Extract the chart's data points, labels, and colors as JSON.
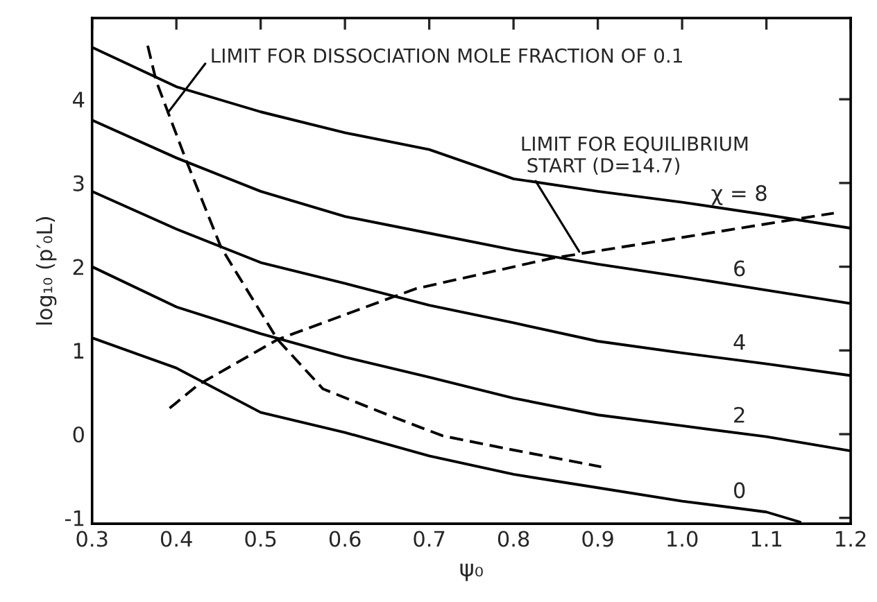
{
  "chart_data": {
    "type": "line",
    "xlabel": "ψ₀",
    "ylabel": "log₁₀ (p′₀L)",
    "xlim": [
      0.3,
      1.2
    ],
    "ylim": [
      -1.07,
      4.97
    ],
    "xticks": [
      {
        "value": 0.3,
        "label": "0.3"
      },
      {
        "value": 0.4,
        "label": "0.4"
      },
      {
        "value": 0.5,
        "label": "0.5"
      },
      {
        "value": 0.6,
        "label": "0.6"
      },
      {
        "value": 0.7,
        "label": "0.7"
      },
      {
        "value": 0.8,
        "label": "0.8"
      },
      {
        "value": 0.9,
        "label": "0.9"
      },
      {
        "value": 1.0,
        "label": "1.0"
      },
      {
        "value": 1.1,
        "label": "1.1"
      },
      {
        "value": 1.2,
        "label": "1.2"
      }
    ],
    "yticks": [
      -1,
      0,
      1,
      2,
      3,
      4
    ],
    "grid": false,
    "legend": false,
    "marker": "none",
    "series": [
      {
        "name": "0",
        "color": "#000000",
        "line_style": "solid",
        "x": [
          0.3,
          0.4,
          0.5,
          0.6,
          0.7,
          0.8,
          0.9,
          1.0,
          1.1,
          1.14
        ],
        "values": [
          1.15,
          0.79,
          0.26,
          0.02,
          -0.26,
          -0.48,
          -0.64,
          -0.8,
          -0.93,
          -1.05
        ]
      },
      {
        "color": "#000000",
        "line_style": "solid",
        "x": [
          0.3,
          0.4,
          0.5,
          0.6,
          0.7,
          0.8,
          0.9,
          1.0,
          1.1,
          1.2
        ],
        "name": "2",
        "values": [
          2.0,
          1.52,
          1.2,
          0.92,
          0.68,
          0.43,
          0.23,
          0.1,
          -0.03,
          -0.2
        ]
      },
      {
        "color": "#000000",
        "line_style": "solid",
        "x": [
          0.3,
          0.4,
          0.5,
          0.6,
          0.7,
          0.8,
          0.9,
          1.0,
          1.1,
          1.2
        ],
        "name": "4",
        "values": [
          2.9,
          2.45,
          2.05,
          1.8,
          1.54,
          1.33,
          1.11,
          0.97,
          0.84,
          0.7
        ]
      },
      {
        "color": "#000000",
        "line_style": "solid",
        "x": [
          0.3,
          0.4,
          0.5,
          0.6,
          0.7,
          0.8,
          0.9,
          1.0,
          1.1,
          1.2
        ],
        "name": "6",
        "values": [
          3.75,
          3.3,
          2.9,
          2.6,
          2.4,
          2.2,
          2.03,
          1.88,
          1.72,
          1.56
        ]
      },
      {
        "color": "#000000",
        "line_style": "solid",
        "x": [
          0.3,
          0.4,
          0.5,
          0.6,
          0.7,
          0.8,
          0.9,
          1.0,
          1.1,
          1.2
        ],
        "name": "χ = 8",
        "values": [
          4.62,
          4.15,
          3.85,
          3.6,
          3.4,
          3.05,
          2.9,
          2.77,
          2.62,
          2.46
        ]
      },
      {
        "color": "#000000",
        "line_style": "dashed",
        "x": [
          0.366,
          0.376,
          0.412,
          0.453,
          0.473,
          0.52,
          0.574,
          0.656,
          0.716,
          0.795,
          0.904
        ],
        "values": [
          4.64,
          4.22,
          3.26,
          2.23,
          1.9,
          1.13,
          0.54,
          0.21,
          -0.02,
          -0.18,
          -0.39
        ]
      },
      {
        "color": "#000000",
        "line_style": "dashed",
        "x": [
          0.392,
          0.426,
          0.52,
          0.652,
          0.685,
          0.845,
          1.18
        ],
        "values": [
          0.31,
          0.59,
          1.13,
          1.62,
          1.74,
          2.1,
          2.64
        ]
      }
    ],
    "annotations": [
      {
        "text": "LIMIT FOR DISSOCIATION MOLE FRACTION OF 0.1",
        "x": 0.39,
        "y": 3.84
      },
      {
        "text": "LIMIT FOR EQUILIBRIUM\n START (D=14.7)",
        "x": 0.878,
        "y": 2.18
      }
    ]
  }
}
